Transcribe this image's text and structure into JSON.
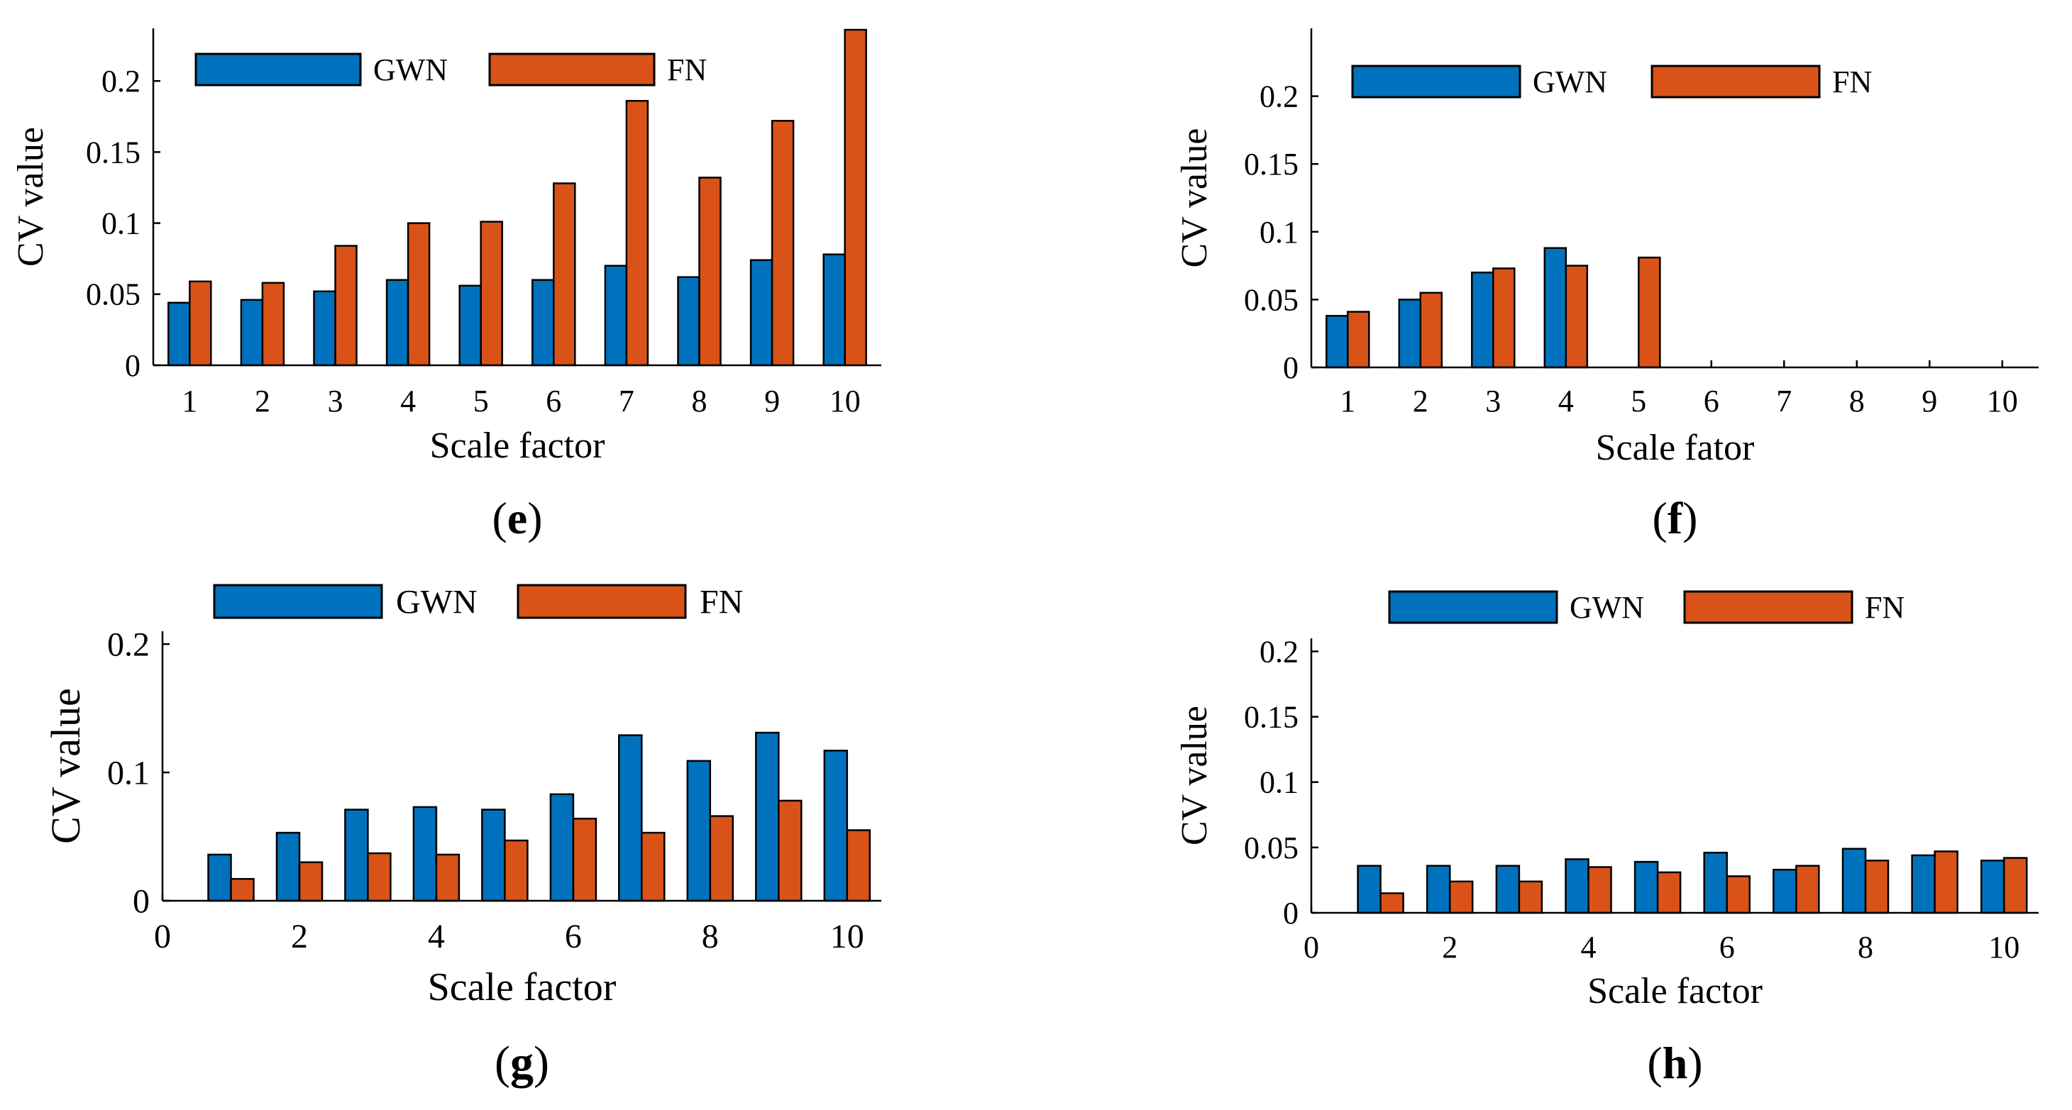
{
  "colors": {
    "gwn": "#0072BD",
    "fn": "#D95319",
    "axis": "#000000"
  },
  "chart_data": [
    {
      "panel_label": "e",
      "type": "bar",
      "xlabel": "Scale factor",
      "ylabel": "CV value",
      "categories": [
        "1",
        "2",
        "3",
        "4",
        "5",
        "6",
        "7",
        "8",
        "9",
        "10"
      ],
      "x_ticks": [
        "1",
        "2",
        "3",
        "4",
        "5",
        "6",
        "7",
        "8",
        "9",
        "10"
      ],
      "y_ticks": [
        "0",
        "0.05",
        "0.1",
        "0.15",
        "0.2"
      ],
      "xlim": [
        0.5,
        10.5
      ],
      "ylim": [
        0,
        0.237
      ],
      "legend": "top, horizontal",
      "grid": false,
      "series": [
        {
          "name": "GWN",
          "values": [
            0.044,
            0.046,
            0.052,
            0.06,
            0.056,
            0.06,
            0.07,
            0.062,
            0.074,
            0.078
          ]
        },
        {
          "name": "FN",
          "values": [
            0.059,
            0.058,
            0.084,
            0.1,
            0.101,
            0.128,
            0.186,
            0.132,
            0.172,
            0.236
          ]
        }
      ]
    },
    {
      "panel_label": "f",
      "type": "bar",
      "xlabel": "Scale fator",
      "ylabel": "CV value",
      "categories": [
        "1",
        "2",
        "3",
        "4",
        "5",
        "6",
        "7",
        "8",
        "9",
        "10"
      ],
      "x_ticks": [
        "1",
        "2",
        "3",
        "4",
        "5",
        "6",
        "7",
        "8",
        "9",
        "10"
      ],
      "y_ticks": [
        "0",
        "0.05",
        "0.1",
        "0.15",
        "0.2"
      ],
      "xlim": [
        0.5,
        10.5
      ],
      "ylim": [
        0,
        0.25
      ],
      "legend": "top, horizontal",
      "grid": false,
      "series": [
        {
          "name": "GWN",
          "values": [
            0.038,
            0.05,
            0.07,
            0.088,
            0,
            0,
            0,
            0,
            0,
            0
          ]
        },
        {
          "name": "FN",
          "values": [
            0.041,
            0.055,
            0.073,
            0.075,
            0.081,
            0,
            0,
            0,
            0,
            0
          ]
        }
      ]
    },
    {
      "panel_label": "g",
      "type": "bar",
      "xlabel": "Scale factor",
      "ylabel": "CV value",
      "categories": [
        "1",
        "2",
        "3",
        "4",
        "5",
        "6",
        "7",
        "8",
        "9",
        "10"
      ],
      "x_ticks": [
        "0",
        "2",
        "4",
        "6",
        "8",
        "10"
      ],
      "y_ticks": [
        "0",
        "0.1",
        "0.2"
      ],
      "xlim": [
        0,
        10.5
      ],
      "ylim": [
        0,
        0.21
      ],
      "legend": "top, horizontal",
      "grid": false,
      "series": [
        {
          "name": "GWN",
          "values": [
            0.036,
            0.053,
            0.071,
            0.073,
            0.071,
            0.083,
            0.129,
            0.109,
            0.131,
            0.117
          ]
        },
        {
          "name": "FN",
          "values": [
            0.017,
            0.03,
            0.037,
            0.036,
            0.047,
            0.064,
            0.053,
            0.066,
            0.078,
            0.055
          ]
        }
      ]
    },
    {
      "panel_label": "h",
      "type": "bar",
      "xlabel": "Scale factor",
      "ylabel": "CV value",
      "categories": [
        "1",
        "2",
        "3",
        "4",
        "5",
        "6",
        "7",
        "8",
        "9",
        "10"
      ],
      "x_ticks": [
        "0",
        "2",
        "4",
        "6",
        "8",
        "10"
      ],
      "y_ticks": [
        "0",
        "0.05",
        "0.1",
        "0.15",
        "0.2"
      ],
      "xlim": [
        0,
        10.5
      ],
      "ylim": [
        0,
        0.21
      ],
      "legend": "top, horizontal",
      "grid": false,
      "series": [
        {
          "name": "GWN",
          "values": [
            0.036,
            0.036,
            0.036,
            0.041,
            0.039,
            0.046,
            0.033,
            0.049,
            0.044,
            0.04
          ]
        },
        {
          "name": "FN",
          "values": [
            0.015,
            0.024,
            0.024,
            0.035,
            0.031,
            0.028,
            0.036,
            0.04,
            0.047,
            0.042
          ]
        }
      ]
    }
  ]
}
